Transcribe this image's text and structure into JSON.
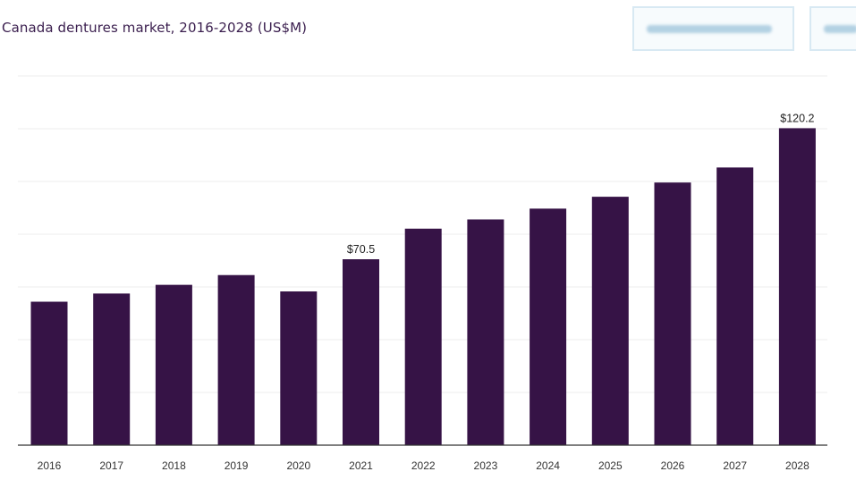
{
  "toolbar": {
    "buttons": [
      {
        "label": ""
      },
      {
        "label": ""
      }
    ]
  },
  "colors": {
    "bar": "#361346",
    "grid": "#ececec",
    "axis": "#333333",
    "title": "#3a1e4e"
  },
  "chart_data": {
    "type": "bar",
    "title": "Canada dentures market, 2016-2028 (US$M)",
    "xlabel": "",
    "ylabel": "",
    "categories": [
      "2016",
      "2017",
      "2018",
      "2019",
      "2020",
      "2021",
      "2022",
      "2023",
      "2024",
      "2025",
      "2026",
      "2027",
      "2028"
    ],
    "values": [
      54.4,
      57.5,
      60.8,
      64.5,
      58.3,
      70.5,
      82.1,
      85.6,
      89.7,
      94.2,
      99.6,
      105.3,
      120.2
    ],
    "data_labels": [
      {
        "index": 5,
        "text": "$70.5"
      },
      {
        "index": 12,
        "text": "$120.2"
      }
    ],
    "ylim": [
      0,
      140
    ],
    "grid": true,
    "legend": "none"
  }
}
